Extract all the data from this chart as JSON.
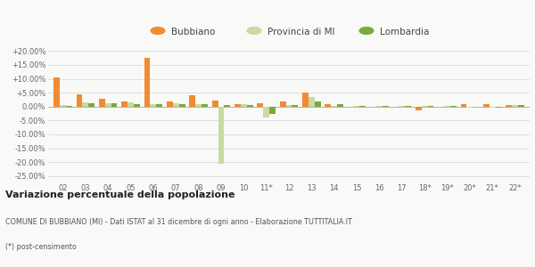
{
  "categories": [
    "02",
    "03",
    "04",
    "05",
    "06",
    "07",
    "08",
    "09",
    "10",
    "11*",
    "12",
    "13",
    "14",
    "15",
    "16",
    "17",
    "18*",
    "19*",
    "20*",
    "21*",
    "22*"
  ],
  "bubbiano": [
    10.6,
    4.5,
    2.8,
    2.0,
    17.5,
    1.8,
    4.2,
    2.3,
    1.0,
    1.2,
    1.8,
    5.0,
    0.8,
    0.0,
    0.0,
    0.0,
    -1.2,
    0.0,
    1.0,
    0.8,
    0.6
  ],
  "provincia": [
    0.7,
    1.4,
    1.3,
    1.4,
    1.0,
    1.1,
    1.0,
    -20.5,
    0.9,
    -3.8,
    0.6,
    3.5,
    0.4,
    0.2,
    0.1,
    0.1,
    0.2,
    0.1,
    -0.3,
    -0.5,
    0.6
  ],
  "lombardia": [
    0.4,
    1.2,
    1.2,
    1.0,
    0.8,
    0.8,
    0.8,
    0.5,
    0.7,
    -2.5,
    0.5,
    2.0,
    0.8,
    0.1,
    0.1,
    0.1,
    0.1,
    0.1,
    -0.2,
    -0.3,
    0.5
  ],
  "color_bubbiano": "#f28a30",
  "color_provincia": "#c8dba0",
  "color_lombardia": "#7aaa3a",
  "title": "Variazione percentuale della popolazione",
  "subtitle": "COMUNE DI BUBBIANO (MI) - Dati ISTAT al 31 dicembre di ogni anno - Elaborazione TUTTITALIA.IT",
  "footnote": "(*) post-censimento",
  "ylim": [
    -27,
    23
  ],
  "yticks": [
    -25,
    -20,
    -15,
    -10,
    -5,
    0,
    5,
    10,
    15,
    20
  ],
  "ytick_labels": [
    "-25.00%",
    "-20.00%",
    "-15.00%",
    "-10.00%",
    "-5.00%",
    "0.00%",
    "+5.00%",
    "+10.00%",
    "+15.00%",
    "+20.00%"
  ],
  "bg_color": "#f9f9f7",
  "grid_color": "#d5d5d5"
}
